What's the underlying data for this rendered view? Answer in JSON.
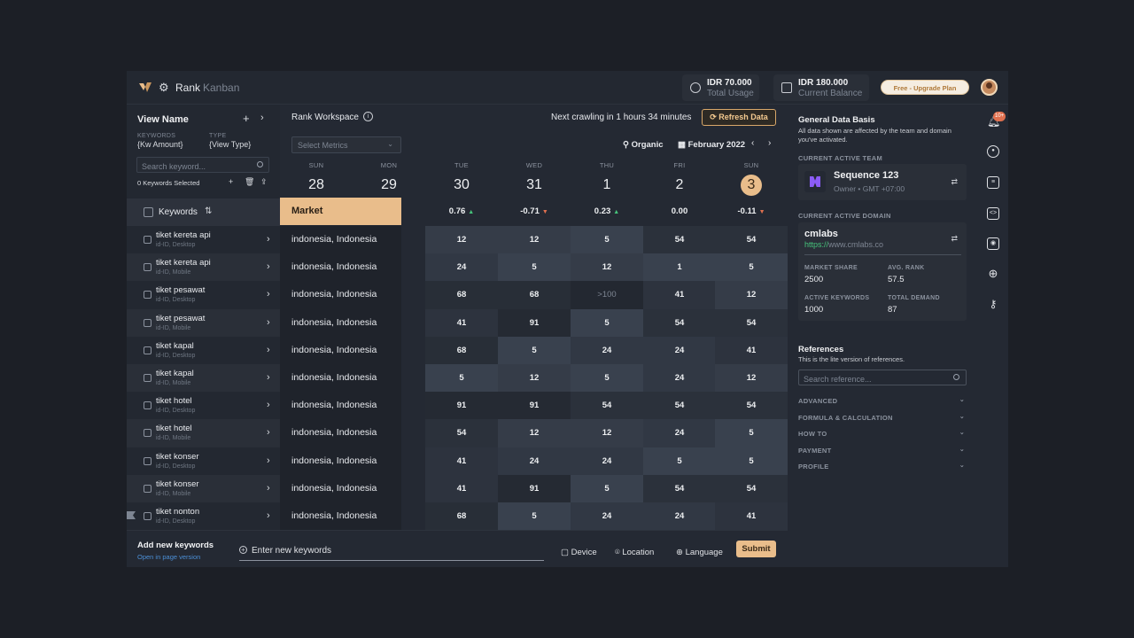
{
  "nav": {
    "rank": "Rank",
    "kanban": "Kanban"
  },
  "stats": {
    "usage_value": "IDR 70.000",
    "usage_label": "Total Usage",
    "balance_value": "IDR 180.000",
    "balance_label": "Current Balance",
    "upgrade": "Free - Upgrade Plan"
  },
  "left": {
    "view_name": "View Name",
    "keywords_label": "KEYWORDS",
    "keywords_value": "{Kw Amount}",
    "type_label": "TYPE",
    "type_value": "{View Type}",
    "search_placeholder": "Search keyword...",
    "selected": "0 Keywords Selected",
    "keywords_header": "Keywords"
  },
  "workspace": {
    "title": "Rank Workspace",
    "crawl": "Next crawling in 1 hours 34 minutes",
    "refresh": "Refresh Data",
    "select_metrics": "Select Metrics",
    "organic": "Organic",
    "month": "February 2022",
    "market_header": "Market"
  },
  "days": [
    {
      "name": "SUN",
      "date": "28",
      "delta": "",
      "trend": ""
    },
    {
      "name": "MON",
      "date": "29",
      "delta": "",
      "trend": ""
    },
    {
      "name": "TUE",
      "date": "30",
      "delta": "0.76",
      "trend": "up"
    },
    {
      "name": "WED",
      "date": "31",
      "delta": "-0.71",
      "trend": "down"
    },
    {
      "name": "THU",
      "date": "1",
      "delta": "0.23",
      "trend": "up"
    },
    {
      "name": "FRI",
      "date": "2",
      "delta": "0.00",
      "trend": ""
    },
    {
      "name": "SUN",
      "date": "3",
      "delta": "-0.11",
      "trend": "down"
    }
  ],
  "rows": [
    {
      "keyword": "tiket kereta api",
      "sub": "id-ID, Desktop",
      "market": "indonesia, Indonesia",
      "values": [
        "12",
        "12",
        "5",
        "54",
        "54"
      ]
    },
    {
      "keyword": "tiket kereta api",
      "sub": "id-ID, Mobile",
      "market": "indonesia, Indonesia",
      "values": [
        "24",
        "5",
        "12",
        "1",
        "5"
      ]
    },
    {
      "keyword": "tiket pesawat",
      "sub": "id-ID, Desktop",
      "market": "indonesia, Indonesia",
      "values": [
        "68",
        "68",
        ">100",
        "41",
        "12"
      ]
    },
    {
      "keyword": "tiket pesawat",
      "sub": "id-ID, Mobile",
      "market": "indonesia, Indonesia",
      "values": [
        "41",
        "91",
        "5",
        "54",
        "54"
      ]
    },
    {
      "keyword": "tiket kapal",
      "sub": "id-ID, Desktop",
      "market": "indonesia, Indonesia",
      "values": [
        "68",
        "5",
        "24",
        "24",
        "41"
      ]
    },
    {
      "keyword": "tiket kapal",
      "sub": "id-ID, Mobile",
      "market": "indonesia, Indonesia",
      "values": [
        "5",
        "12",
        "5",
        "24",
        "12"
      ]
    },
    {
      "keyword": "tiket hotel",
      "sub": "id-ID, Desktop",
      "market": "indonesia, Indonesia",
      "values": [
        "91",
        "91",
        "54",
        "54",
        "54"
      ]
    },
    {
      "keyword": "tiket hotel",
      "sub": "id-ID, Mobile",
      "market": "indonesia, Indonesia",
      "values": [
        "54",
        "12",
        "12",
        "24",
        "5"
      ]
    },
    {
      "keyword": "tiket konser",
      "sub": "id-ID, Desktop",
      "market": "indonesia, Indonesia",
      "values": [
        "41",
        "24",
        "24",
        "5",
        "5"
      ]
    },
    {
      "keyword": "tiket konser",
      "sub": "id-ID, Mobile",
      "market": "indonesia, Indonesia",
      "values": [
        "41",
        "91",
        "5",
        "54",
        "54"
      ]
    },
    {
      "keyword": "tiket nonton",
      "sub": "id-ID, Desktop",
      "market": "indonesia, Indonesia",
      "values": [
        "68",
        "5",
        "24",
        "24",
        "41"
      ]
    }
  ],
  "footer": {
    "title": "Add new keywords",
    "link": "Open in page version",
    "placeholder": "Enter new keywords",
    "device": "Device",
    "location": "Location",
    "language": "Language",
    "submit": "Submit"
  },
  "right": {
    "basis_title": "General Data Basis",
    "basis_sub": "All data shown are affected by the team and domain you've activated.",
    "team_caption": "CURRENT ACTIVE TEAM",
    "team_name": "Sequence 123",
    "team_sub": "Owner • GMT +07:00",
    "domain_caption": "CURRENT ACTIVE DOMAIN",
    "domain_name": "cmlabs",
    "domain_scheme": "https://",
    "domain_host": "www.cmlabs.co",
    "metrics": [
      {
        "label": "MARKET SHARE",
        "value": "2500"
      },
      {
        "label": "AVG. RANK",
        "value": "57.5"
      },
      {
        "label": "ACTIVE KEYWORDS",
        "value": "1000"
      },
      {
        "label": "TOTAL DEMAND",
        "value": "87"
      }
    ],
    "ref_title": "References",
    "ref_sub": "This is the lite version of references.",
    "ref_placeholder": "Search reference...",
    "accordion": [
      "ADVANCED",
      "FORMULA & CALCULATION",
      "HOW TO",
      "PAYMENT",
      "PROFILE"
    ]
  },
  "rail": {
    "badge": "10+"
  },
  "colors": {
    "accent": "#e9bd8b",
    "up": "#46c37b",
    "down": "#e0704f"
  }
}
